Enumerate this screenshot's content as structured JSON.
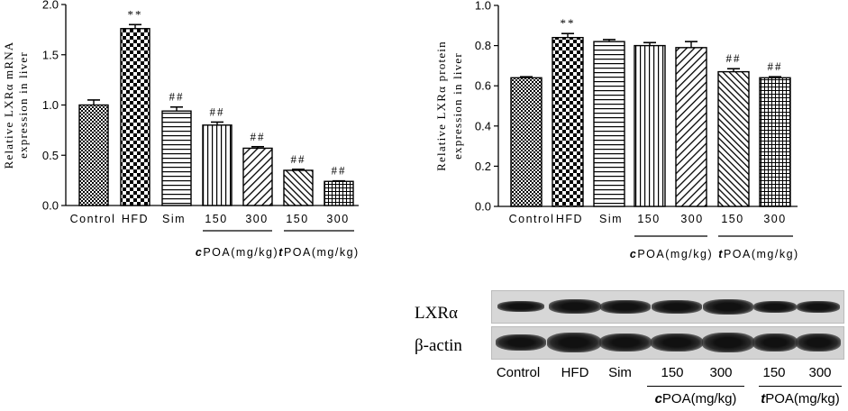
{
  "chart_data": [
    {
      "type": "bar",
      "ylabel_line1": "Relative LXRα mRNA",
      "ylabel_line2": "expression in liver",
      "ylim": [
        0,
        2.0
      ],
      "yticks": [
        "0.0",
        "0.5",
        "1.0",
        "1.5",
        "2.0"
      ],
      "ytick_values": [
        0,
        0.5,
        1.0,
        1.5,
        2.0
      ],
      "categories": [
        "Control",
        "HFD",
        "Sim",
        "150",
        "300",
        "150",
        "300"
      ],
      "values": [
        1.0,
        1.76,
        0.94,
        0.8,
        0.57,
        0.35,
        0.24
      ],
      "errors": [
        0.05,
        0.04,
        0.04,
        0.03,
        0.015,
        0.01,
        0.005
      ],
      "annotations": [
        "",
        "**",
        "##",
        "##",
        "##",
        "##",
        "##"
      ],
      "groups": [
        {
          "label_prefix": "c",
          "label_rest": "POA(mg/kg)",
          "span": [
            3,
            4
          ]
        },
        {
          "label_prefix": "t",
          "label_rest": "POA(mg/kg)",
          "span": [
            5,
            6
          ]
        }
      ],
      "patterns": [
        "dense-check",
        "big-check",
        "hlines",
        "vlines",
        "diag-right",
        "diag-left",
        "grid"
      ]
    },
    {
      "type": "bar",
      "ylabel_line1": "Relative LXRα protein",
      "ylabel_line2": "expression in liver",
      "ylim": [
        0,
        1.0
      ],
      "yticks": [
        "0.0",
        "0.2",
        "0.4",
        "0.6",
        "0.8",
        "1.0"
      ],
      "ytick_values": [
        0,
        0.2,
        0.4,
        0.6,
        0.8,
        1.0
      ],
      "categories": [
        "Control",
        "HFD",
        "Sim",
        "150",
        "300",
        "150",
        "300"
      ],
      "values": [
        0.64,
        0.84,
        0.82,
        0.8,
        0.79,
        0.67,
        0.64
      ],
      "errors": [
        0.005,
        0.02,
        0.01,
        0.015,
        0.03,
        0.015,
        0.005
      ],
      "annotations": [
        "",
        "**",
        "",
        "",
        "",
        "##",
        "##"
      ],
      "groups": [
        {
          "label_prefix": "c",
          "label_rest": "POA(mg/kg)",
          "span": [
            3,
            4
          ]
        },
        {
          "label_prefix": "t",
          "label_rest": "POA(mg/kg)",
          "span": [
            5,
            6
          ]
        }
      ],
      "patterns": [
        "dense-check",
        "big-check",
        "hlines",
        "vlines",
        "diag-right",
        "diag-left",
        "grid"
      ]
    }
  ],
  "blot": {
    "rows": [
      "LXRα",
      "β-actin"
    ],
    "lanes": [
      "Control",
      "HFD",
      "Sim",
      "150",
      "300",
      "150",
      "300"
    ],
    "groups": [
      {
        "prefix": "c",
        "rest": "POA(mg/kg)"
      },
      {
        "prefix": "t",
        "rest": "POA(mg/kg)"
      }
    ]
  }
}
